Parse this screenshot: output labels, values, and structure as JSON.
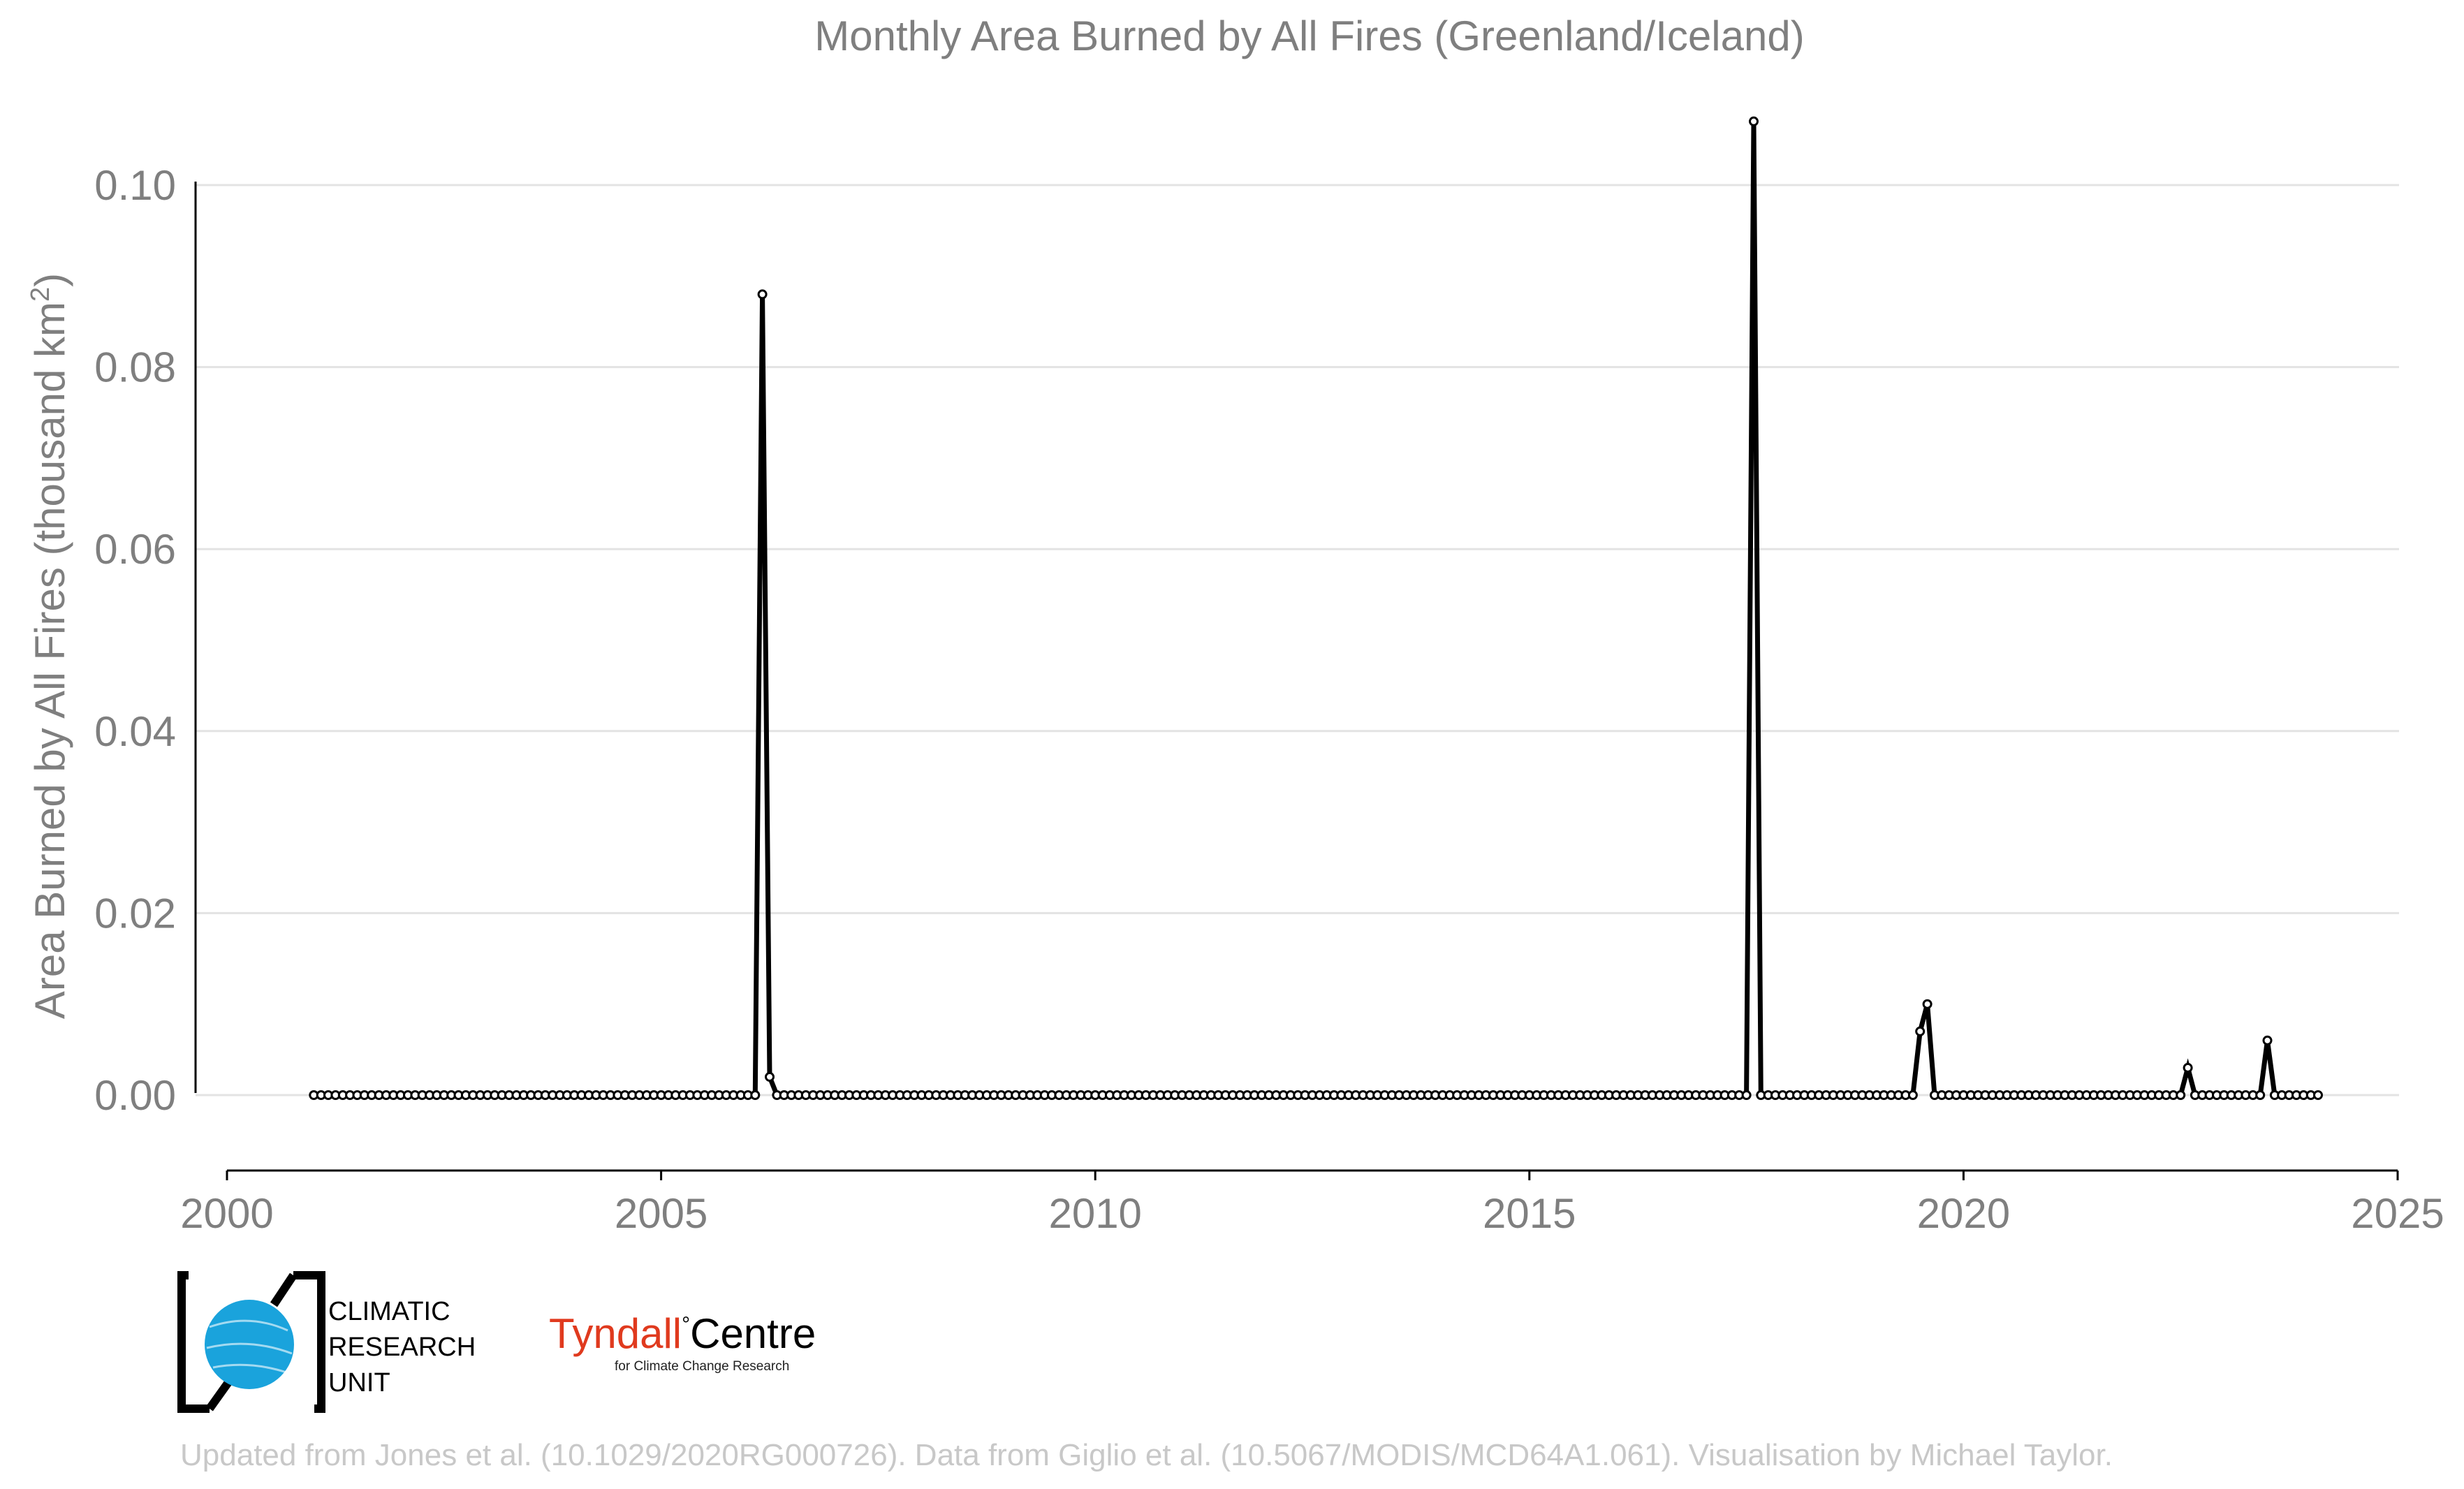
{
  "chart_data": {
    "type": "line",
    "title": "Monthly Area Burned by All Fires (Greenland/Iceland)",
    "ylabel": "Area Burned by All Fires (thousand km",
    "ylabel_superscript": "2",
    "ylabel_close": ")",
    "xlim": [
      2000,
      2025
    ],
    "ylim": [
      -0.009,
      0.107
    ],
    "x_ticks": [
      2000,
      2005,
      2010,
      2015,
      2020,
      2025
    ],
    "y_ticks": [
      "0.00",
      "0.02",
      "0.04",
      "0.06",
      "0.08",
      "0.10"
    ],
    "y_tick_values": [
      0,
      0.02,
      0.04,
      0.06,
      0.08,
      0.1
    ],
    "grid": true,
    "line_color": "#000000",
    "start_year": 2001,
    "start_month": 1,
    "n_months": 278,
    "nonzero_months": [
      {
        "date": "2006-03",
        "value": 0.088
      },
      {
        "date": "2006-04",
        "value": 0.002
      },
      {
        "date": "2017-08",
        "value": 0.107
      },
      {
        "date": "2019-07",
        "value": 0.007
      },
      {
        "date": "2019-08",
        "value": 0.01
      },
      {
        "date": "2022-08",
        "value": 0.003
      },
      {
        "date": "2023-07",
        "value": 0.006
      }
    ]
  },
  "logos": {
    "cru": {
      "line1": "CLIMATIC",
      "line2": "RESEARCH",
      "line3": "UNIT",
      "globe_color": "#1aa3dc"
    },
    "tyndall": {
      "name": "Tyndall",
      "degree": "°",
      "name2": "Centre",
      "subtitle": "for Climate Change Research",
      "name_color": "#e03a1e"
    }
  },
  "footer": "Updated from Jones et al. (10.1029/2020RG000726). Data from Giglio et al. (10.5067/MODIS/MCD64A1.061). Visualisation by Michael Taylor."
}
